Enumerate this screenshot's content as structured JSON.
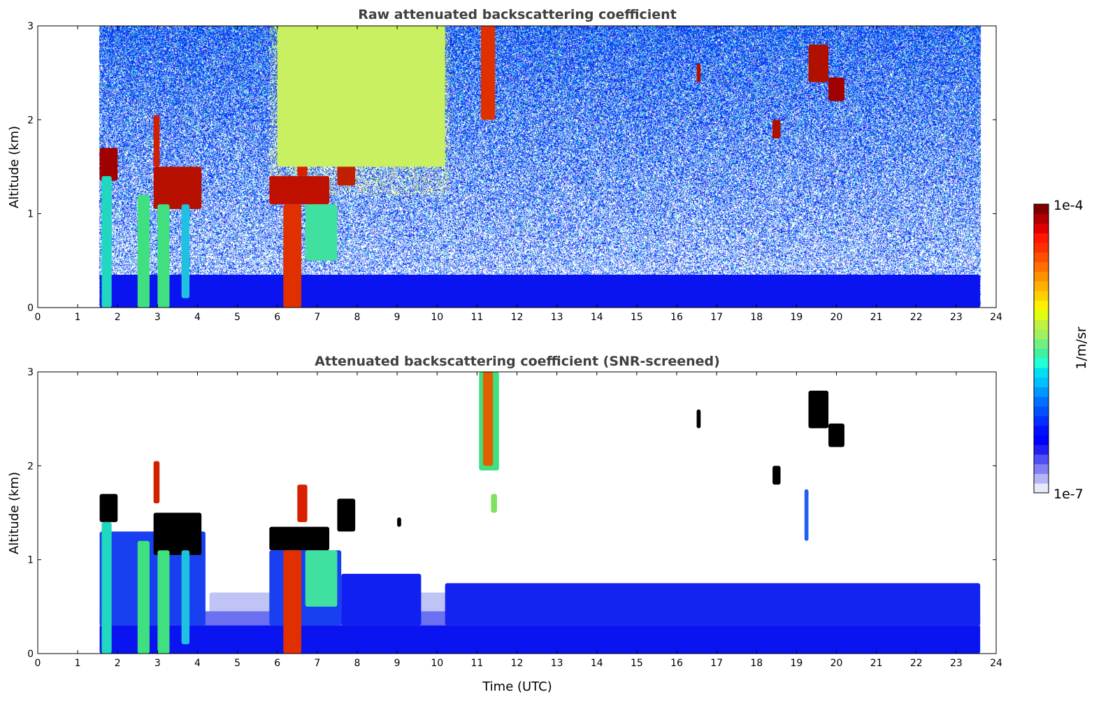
{
  "chart_data": [
    {
      "type": "heatmap",
      "title": "Raw attenuated backscattering coefficient",
      "xlabel": "",
      "ylabel": "Altitude (km)",
      "xlim": [
        0,
        24
      ],
      "ylim": [
        0,
        3
      ],
      "xticks": [
        "0",
        "1",
        "2",
        "3",
        "4",
        "5",
        "6",
        "7",
        "8",
        "9",
        "10",
        "11",
        "12",
        "13",
        "14",
        "15",
        "16",
        "17",
        "18",
        "19",
        "20",
        "21",
        "22",
        "23",
        "24"
      ],
      "yticks": [
        "0",
        "1",
        "2",
        "3"
      ],
      "data_time_range": [
        1.55,
        23.6
      ],
      "background_noise": "heavy",
      "features": [
        {
          "name": "boundary-layer",
          "t": [
            1.55,
            23.6
          ],
          "z": [
            0,
            0.35
          ],
          "color": "#0a14f0"
        },
        {
          "name": "cloud",
          "t": [
            1.55,
            2.0
          ],
          "z": [
            1.35,
            1.7
          ],
          "color": "#a00000"
        },
        {
          "name": "cloud",
          "t": [
            2.9,
            4.1
          ],
          "z": [
            1.05,
            1.5
          ],
          "color": "#b81000"
        },
        {
          "name": "cloud",
          "t": [
            2.9,
            3.05
          ],
          "z": [
            1.5,
            2.05
          ],
          "color": "#d02000"
        },
        {
          "name": "precip",
          "t": [
            1.6,
            1.85
          ],
          "z": [
            0,
            1.4
          ],
          "color": "#20d8c0"
        },
        {
          "name": "precip",
          "t": [
            2.5,
            2.8
          ],
          "z": [
            0,
            1.2
          ],
          "color": "#40e080"
        },
        {
          "name": "precip",
          "t": [
            3.0,
            3.3
          ],
          "z": [
            0,
            1.1
          ],
          "color": "#40e080"
        },
        {
          "name": "precip",
          "t": [
            3.6,
            3.8
          ],
          "z": [
            0.1,
            1.1
          ],
          "color": "#20c0e0"
        },
        {
          "name": "cloud",
          "t": [
            5.8,
            7.3
          ],
          "z": [
            1.1,
            1.4
          ],
          "color": "#c01000"
        },
        {
          "name": "cloud",
          "t": [
            6.5,
            6.75
          ],
          "z": [
            1.4,
            1.8
          ],
          "color": "#d82000"
        },
        {
          "name": "precip",
          "t": [
            6.15,
            6.6
          ],
          "z": [
            0,
            1.1
          ],
          "color": "#e03000"
        },
        {
          "name": "precip",
          "t": [
            6.7,
            7.5
          ],
          "z": [
            0.5,
            1.1
          ],
          "color": "#40e0a0"
        },
        {
          "name": "cloud",
          "t": [
            7.5,
            7.95
          ],
          "z": [
            1.3,
            1.65
          ],
          "color": "#c02000"
        },
        {
          "name": "aerosol",
          "t": [
            6.0,
            10.2
          ],
          "z": [
            1.5,
            3.0
          ],
          "color": "#c8f060"
        },
        {
          "name": "cloud",
          "t": [
            11.1,
            11.45
          ],
          "z": [
            2.0,
            3.0
          ],
          "color": "#e03000"
        },
        {
          "name": "cloud",
          "t": [
            16.5,
            16.6
          ],
          "z": [
            2.4,
            2.6
          ],
          "color": "#b01000"
        },
        {
          "name": "cloud",
          "t": [
            18.4,
            18.6
          ],
          "z": [
            1.8,
            2.0
          ],
          "color": "#b01000"
        },
        {
          "name": "cloud",
          "t": [
            19.3,
            19.8
          ],
          "z": [
            2.4,
            2.8
          ],
          "color": "#b01000"
        },
        {
          "name": "cloud",
          "t": [
            19.8,
            20.2
          ],
          "z": [
            2.2,
            2.45
          ],
          "color": "#a00000"
        }
      ]
    },
    {
      "type": "heatmap",
      "title": "Attenuated backscattering coefficient (SNR-screened)",
      "xlabel": "Time (UTC)",
      "ylabel": "Altitude (km)",
      "xlim": [
        0,
        24
      ],
      "ylim": [
        0,
        3
      ],
      "xticks": [
        "0",
        "1",
        "2",
        "3",
        "4",
        "5",
        "6",
        "7",
        "8",
        "9",
        "10",
        "11",
        "12",
        "13",
        "14",
        "15",
        "16",
        "17",
        "18",
        "19",
        "20",
        "21",
        "22",
        "23",
        "24"
      ],
      "yticks": [
        "0",
        "1",
        "2",
        "3"
      ],
      "data_time_range": [
        1.55,
        23.6
      ],
      "background_noise": "none",
      "features": [
        {
          "name": "boundary-layer-light",
          "t": [
            4.3,
            23.6
          ],
          "z": [
            0.35,
            0.65
          ],
          "color": "#c0c4f4"
        },
        {
          "name": "boundary-layer-mid",
          "t": [
            1.55,
            23.6
          ],
          "z": [
            0.25,
            0.45
          ],
          "color": "#6a70f0"
        },
        {
          "name": "boundary-layer",
          "t": [
            1.55,
            23.6
          ],
          "z": [
            0,
            0.3
          ],
          "color": "#0a14f0"
        },
        {
          "name": "boundary-layer-top",
          "t": [
            7.6,
            9.6
          ],
          "z": [
            0.3,
            0.85
          ],
          "color": "#1020f0"
        },
        {
          "name": "boundary-layer-top",
          "t": [
            10.2,
            23.6
          ],
          "z": [
            0.3,
            0.75
          ],
          "color": "#1424f0"
        },
        {
          "name": "cloud-lower",
          "t": [
            1.55,
            4.2
          ],
          "z": [
            0.3,
            1.3
          ],
          "color": "#1840f0"
        },
        {
          "name": "cloud-lower",
          "t": [
            5.8,
            7.6
          ],
          "z": [
            0.3,
            1.1
          ],
          "color": "#1840f0"
        },
        {
          "name": "cloud",
          "t": [
            1.55,
            2.0
          ],
          "z": [
            1.4,
            1.7
          ],
          "color": "#000000"
        },
        {
          "name": "cloud",
          "t": [
            2.9,
            4.1
          ],
          "z": [
            1.05,
            1.5
          ],
          "color": "#000000"
        },
        {
          "name": "cloud",
          "t": [
            2.9,
            3.05
          ],
          "z": [
            1.6,
            2.05
          ],
          "color": "#d02000"
        },
        {
          "name": "precip",
          "t": [
            1.6,
            1.85
          ],
          "z": [
            0,
            1.4
          ],
          "color": "#20d8c0"
        },
        {
          "name": "precip",
          "t": [
            2.5,
            2.8
          ],
          "z": [
            0,
            1.2
          ],
          "color": "#40e080"
        },
        {
          "name": "precip",
          "t": [
            3.0,
            3.3
          ],
          "z": [
            0,
            1.1
          ],
          "color": "#40e080"
        },
        {
          "name": "precip",
          "t": [
            3.6,
            3.8
          ],
          "z": [
            0.1,
            1.1
          ],
          "color": "#20c0e0"
        },
        {
          "name": "cloud",
          "t": [
            5.8,
            7.3
          ],
          "z": [
            1.1,
            1.35
          ],
          "color": "#000000"
        },
        {
          "name": "cloud",
          "t": [
            6.5,
            6.75
          ],
          "z": [
            1.4,
            1.8
          ],
          "color": "#d82000"
        },
        {
          "name": "precip",
          "t": [
            6.15,
            6.6
          ],
          "z": [
            0,
            1.1
          ],
          "color": "#e03000"
        },
        {
          "name": "precip",
          "t": [
            6.7,
            7.5
          ],
          "z": [
            0.5,
            1.1
          ],
          "color": "#40e0a0"
        },
        {
          "name": "cloud",
          "t": [
            7.5,
            7.95
          ],
          "z": [
            1.3,
            1.65
          ],
          "color": "#000000"
        },
        {
          "name": "cloud",
          "t": [
            9.0,
            9.1
          ],
          "z": [
            1.35,
            1.45
          ],
          "color": "#000000"
        },
        {
          "name": "cloud",
          "t": [
            11.05,
            11.55
          ],
          "z": [
            1.95,
            3.0
          ],
          "color": "#40e080"
        },
        {
          "name": "cloud",
          "t": [
            11.15,
            11.4
          ],
          "z": [
            2.0,
            3.0
          ],
          "color": "#e06000"
        },
        {
          "name": "cloud",
          "t": [
            11.35,
            11.5
          ],
          "z": [
            1.5,
            1.7
          ],
          "color": "#80e060"
        },
        {
          "name": "cloud",
          "t": [
            16.5,
            16.6
          ],
          "z": [
            2.4,
            2.6
          ],
          "color": "#000000"
        },
        {
          "name": "cloud",
          "t": [
            18.4,
            18.6
          ],
          "z": [
            1.8,
            2.0
          ],
          "color": "#000000"
        },
        {
          "name": "cloud",
          "t": [
            19.3,
            19.8
          ],
          "z": [
            2.4,
            2.8
          ],
          "color": "#000000"
        },
        {
          "name": "cloud",
          "t": [
            19.8,
            20.2
          ],
          "z": [
            2.2,
            2.45
          ],
          "color": "#000000"
        },
        {
          "name": "virga",
          "t": [
            19.2,
            19.3
          ],
          "z": [
            1.2,
            1.75
          ],
          "color": "#2060f0"
        }
      ]
    }
  ],
  "colorbar": {
    "label": "1/m/sr",
    "max_label": "1e-4",
    "min_label": "1e-7",
    "scale": "log",
    "colors": [
      "#e8e8fa",
      "#b4b4f6",
      "#8080f4",
      "#5050f4",
      "#2020f0",
      "#0000ff",
      "#0010ff",
      "#0030ff",
      "#0050ff",
      "#0070ff",
      "#0098ff",
      "#00c0ff",
      "#00e0f0",
      "#20ffd8",
      "#40f0a0",
      "#70f080",
      "#a0f060",
      "#c0f040",
      "#e0ff10",
      "#fff000",
      "#ffd000",
      "#ffb000",
      "#ff9000",
      "#ff7000",
      "#ff5000",
      "#ff3000",
      "#ff1800",
      "#e00000",
      "#b00000",
      "#800000"
    ]
  }
}
